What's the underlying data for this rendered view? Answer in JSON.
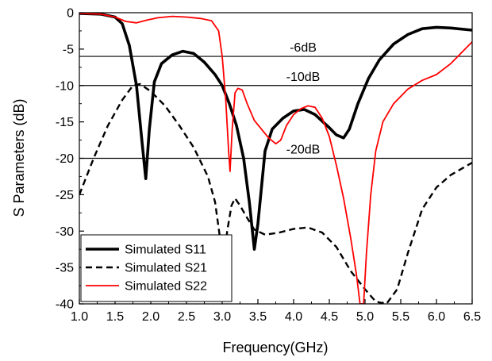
{
  "chart_data": {
    "type": "line",
    "title": "",
    "xlabel": "Frequency(GHz)",
    "ylabel": "S Parameters (dB)",
    "xlim": [
      1.0,
      6.5
    ],
    "ylim": [
      -40,
      0
    ],
    "xticks": [
      "1.0",
      "1.5",
      "2.0",
      "2.5",
      "3.0",
      "3.5",
      "4.0",
      "4.5",
      "5.0",
      "5.5",
      "6.0",
      "6.5"
    ],
    "yticks": [
      "0",
      "-5",
      "-10",
      "-15",
      "-20",
      "-25",
      "-30",
      "-35",
      "-40"
    ],
    "grid": false,
    "legend_position": "bottom-left",
    "reference_lines": [
      {
        "y": -6,
        "label": "-6dB"
      },
      {
        "y": -10,
        "label": "-10dB"
      },
      {
        "y": -20,
        "label": "-20dB"
      }
    ],
    "series": [
      {
        "name": "Simulated S11",
        "color": "#000000",
        "style": "solid-thick",
        "points": [
          [
            1.0,
            -0.1
          ],
          [
            1.3,
            -0.2
          ],
          [
            1.5,
            -0.6
          ],
          [
            1.6,
            -1.5
          ],
          [
            1.7,
            -4.5
          ],
          [
            1.8,
            -10
          ],
          [
            1.88,
            -18
          ],
          [
            1.93,
            -22.8
          ],
          [
            1.98,
            -16
          ],
          [
            2.05,
            -9.5
          ],
          [
            2.15,
            -7
          ],
          [
            2.3,
            -5.8
          ],
          [
            2.45,
            -5.3
          ],
          [
            2.6,
            -5.6
          ],
          [
            2.75,
            -6.8
          ],
          [
            2.9,
            -8.5
          ],
          [
            3.0,
            -10
          ],
          [
            3.1,
            -12.5
          ],
          [
            3.2,
            -15.5
          ],
          [
            3.3,
            -20
          ],
          [
            3.38,
            -26
          ],
          [
            3.45,
            -32.5
          ],
          [
            3.5,
            -29
          ],
          [
            3.6,
            -19
          ],
          [
            3.7,
            -16
          ],
          [
            3.85,
            -14.5
          ],
          [
            4.0,
            -13.5
          ],
          [
            4.15,
            -13.3
          ],
          [
            4.3,
            -14
          ],
          [
            4.5,
            -15.8
          ],
          [
            4.6,
            -16.8
          ],
          [
            4.7,
            -17.2
          ],
          [
            4.78,
            -16
          ],
          [
            4.9,
            -12.5
          ],
          [
            5.05,
            -9
          ],
          [
            5.2,
            -6.5
          ],
          [
            5.4,
            -4.3
          ],
          [
            5.6,
            -3
          ],
          [
            5.8,
            -2.2
          ],
          [
            6.0,
            -2.0
          ],
          [
            6.2,
            -2.1
          ],
          [
            6.5,
            -2.4
          ]
        ]
      },
      {
        "name": "Simulated S21",
        "color": "#000000",
        "style": "dashed",
        "points": [
          [
            1.0,
            -25
          ],
          [
            1.2,
            -20
          ],
          [
            1.4,
            -15.5
          ],
          [
            1.6,
            -12
          ],
          [
            1.75,
            -10
          ],
          [
            1.85,
            -9.8
          ],
          [
            2.0,
            -10.8
          ],
          [
            2.2,
            -12.8
          ],
          [
            2.4,
            -15.5
          ],
          [
            2.6,
            -18.5
          ],
          [
            2.8,
            -22.5
          ],
          [
            2.9,
            -26
          ],
          [
            2.97,
            -31
          ],
          [
            3.02,
            -34.5
          ],
          [
            3.07,
            -30
          ],
          [
            3.13,
            -26.5
          ],
          [
            3.18,
            -25.5
          ],
          [
            3.25,
            -26.5
          ],
          [
            3.35,
            -28.2
          ],
          [
            3.45,
            -29.8
          ],
          [
            3.6,
            -30.5
          ],
          [
            3.8,
            -30.2
          ],
          [
            4.0,
            -29.7
          ],
          [
            4.2,
            -29.5
          ],
          [
            4.4,
            -30.2
          ],
          [
            4.6,
            -32.2
          ],
          [
            4.8,
            -35.5
          ],
          [
            5.0,
            -38
          ],
          [
            5.15,
            -39.7
          ],
          [
            5.3,
            -40
          ],
          [
            5.45,
            -38
          ],
          [
            5.6,
            -33
          ],
          [
            5.8,
            -27
          ],
          [
            6.0,
            -24
          ],
          [
            6.2,
            -22.3
          ],
          [
            6.5,
            -20.6
          ]
        ]
      },
      {
        "name": "Simulated S22",
        "color": "#ff0000",
        "style": "solid",
        "points": [
          [
            1.0,
            -0.1
          ],
          [
            1.3,
            -0.2
          ],
          [
            1.5,
            -0.6
          ],
          [
            1.65,
            -1.2
          ],
          [
            1.8,
            -1.4
          ],
          [
            1.95,
            -1.0
          ],
          [
            2.1,
            -0.7
          ],
          [
            2.3,
            -0.5
          ],
          [
            2.5,
            -0.6
          ],
          [
            2.7,
            -0.8
          ],
          [
            2.85,
            -1.1
          ],
          [
            2.95,
            -2.5
          ],
          [
            3.0,
            -6
          ],
          [
            3.05,
            -12
          ],
          [
            3.09,
            -19
          ],
          [
            3.11,
            -21.8
          ],
          [
            3.14,
            -16
          ],
          [
            3.18,
            -11
          ],
          [
            3.22,
            -10.4
          ],
          [
            3.28,
            -10.6
          ],
          [
            3.35,
            -12.5
          ],
          [
            3.45,
            -14.8
          ],
          [
            3.55,
            -16
          ],
          [
            3.65,
            -17.2
          ],
          [
            3.75,
            -18
          ],
          [
            3.82,
            -17.5
          ],
          [
            3.9,
            -15.5
          ],
          [
            4.0,
            -14
          ],
          [
            4.1,
            -13.2
          ],
          [
            4.2,
            -12.8
          ],
          [
            4.3,
            -13
          ],
          [
            4.4,
            -14.5
          ],
          [
            4.5,
            -17
          ],
          [
            4.6,
            -21
          ],
          [
            4.7,
            -25.5
          ],
          [
            4.8,
            -31
          ],
          [
            4.88,
            -36
          ],
          [
            4.93,
            -40
          ],
          [
            4.98,
            -40
          ],
          [
            5.02,
            -33
          ],
          [
            5.08,
            -25
          ],
          [
            5.15,
            -19
          ],
          [
            5.25,
            -15
          ],
          [
            5.4,
            -12.5
          ],
          [
            5.6,
            -10.5
          ],
          [
            5.8,
            -9.3
          ],
          [
            6.0,
            -8.5
          ],
          [
            6.2,
            -7
          ],
          [
            6.4,
            -5
          ],
          [
            6.5,
            -4
          ]
        ]
      }
    ]
  }
}
